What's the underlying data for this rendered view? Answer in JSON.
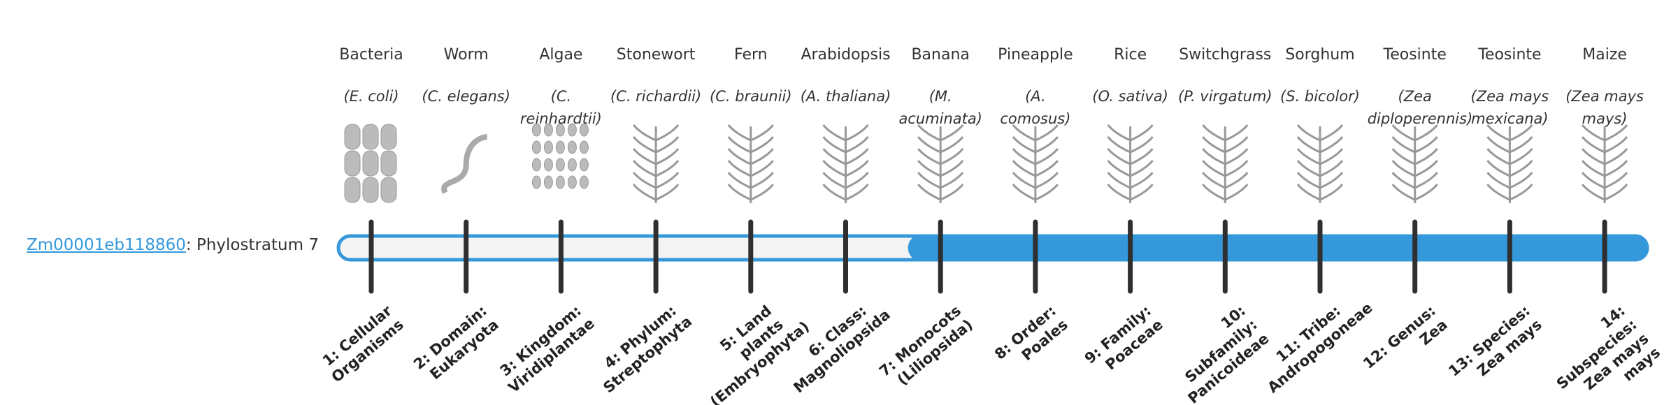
{
  "gene": {
    "id": "Zm00001eb118860",
    "prefix": ": Phylostratum",
    "phylostratum": 7
  },
  "organisms": [
    {
      "name": "Bacteria",
      "latin": "(E. coli)",
      "stratum": "1: Cellular Organisms"
    },
    {
      "name": "Worm",
      "latin": "(C. elegans)",
      "stratum": "2: Domain: Eukaryota"
    },
    {
      "name": "Algae",
      "latin": "(C. reinhardtii)",
      "stratum": "3: Kingdom: Viridiplantae"
    },
    {
      "name": "Stonewort",
      "latin": "(C. richardii)",
      "stratum": "4: Phylum: Streptophyta"
    },
    {
      "name": "Fern",
      "latin": "(C. braunii)",
      "stratum": "5: Land plants (Embryophyta)"
    },
    {
      "name": "Arabidopsis",
      "latin": "(A. thaliana)",
      "stratum": "6: Class: Magnoliopsida"
    },
    {
      "name": "Banana",
      "latin": "(M. acuminata)",
      "stratum": "7: Monocots (Liliopsida)"
    },
    {
      "name": "Pineapple",
      "latin": "(A. comosus)",
      "stratum": "8: Order: Poales"
    },
    {
      "name": "Rice",
      "latin": "(O. sativa)",
      "stratum": "9: Family: Poaceae"
    },
    {
      "name": "Switchgrass",
      "latin": "(P. virgatum)",
      "stratum": "10: Subfamily: Panicoideae"
    },
    {
      "name": "Sorghum",
      "latin": "(S. bicolor)",
      "stratum": "11: Tribe: Andropogoneae"
    },
    {
      "name": "Teosinte",
      "latin": "(Zea diploperennis)",
      "stratum": "12: Genus: Zea"
    },
    {
      "name": "Teosinte",
      "latin": "(Zea mays mexicana)",
      "stratum": "13: Species: Zea mays"
    },
    {
      "name": "Maize",
      "latin": "(Zea mays mays)",
      "stratum": "14: Subspecies: Zea mays mays"
    }
  ]
}
